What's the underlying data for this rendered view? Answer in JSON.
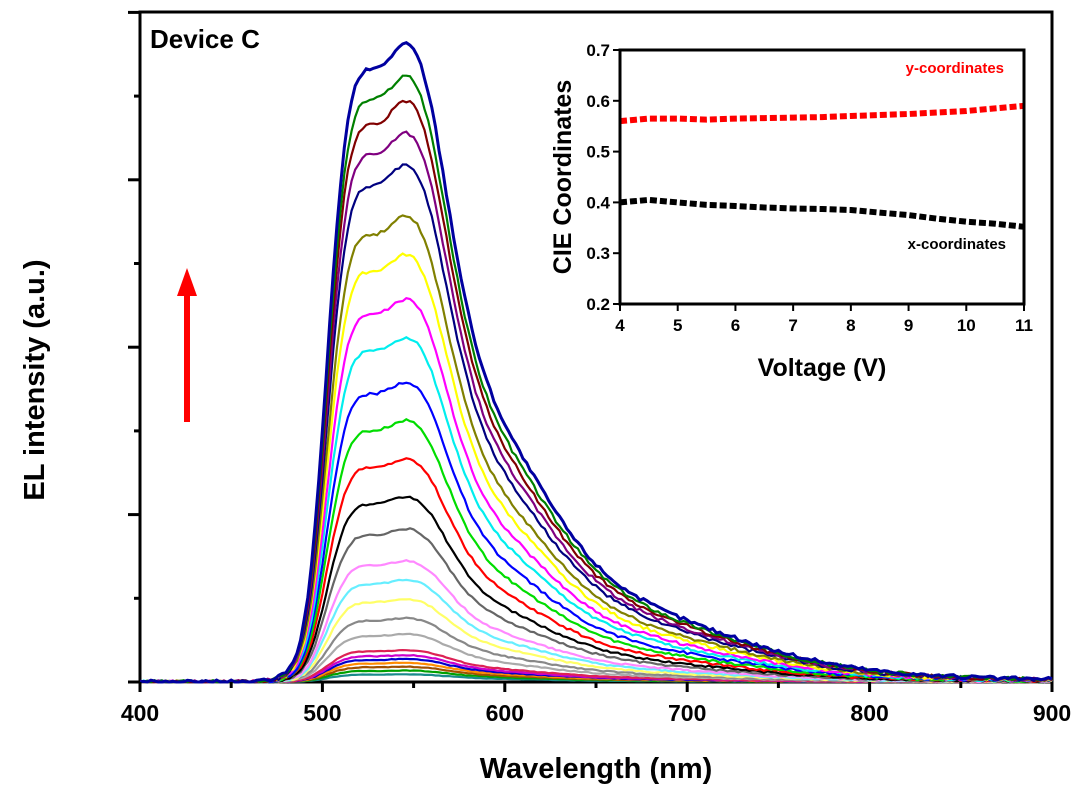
{
  "chart_data": [
    {
      "type": "line",
      "panel": "main",
      "title": "Device C",
      "xlabel": "Wavelength (nm)",
      "ylabel": "EL intensity (a.u.)",
      "xlim": [
        400,
        900
      ],
      "xticks": [
        400,
        500,
        600,
        700,
        800,
        900
      ],
      "yticks_labeled": false,
      "grid": false,
      "legend": "none",
      "annotation": "red upward arrow",
      "peak_wavelengths_nm": [
        512,
        545
      ],
      "series": [
        {
          "color": "#1a8a8a",
          "peak": 0.012
        },
        {
          "color": "#00a000",
          "peak": 0.018
        },
        {
          "color": "#a05000",
          "peak": 0.024
        },
        {
          "color": "#ff8c00",
          "peak": 0.03
        },
        {
          "color": "#0000cc",
          "peak": 0.036
        },
        {
          "color": "#cc00cc",
          "peak": 0.042
        },
        {
          "color": "#dd2255",
          "peak": 0.05
        },
        {
          "color": "#aaaaaa",
          "peak": 0.075
        },
        {
          "color": "#888888",
          "peak": 0.1
        },
        {
          "color": "#ffff66",
          "peak": 0.13
        },
        {
          "color": "#66eeff",
          "peak": 0.16
        },
        {
          "color": "#ff88ff",
          "peak": 0.19
        },
        {
          "color": "#666666",
          "peak": 0.24
        },
        {
          "color": "#000000",
          "peak": 0.29
        },
        {
          "color": "#ff0000",
          "peak": 0.35
        },
        {
          "color": "#00dd00",
          "peak": 0.41
        },
        {
          "color": "#0000ff",
          "peak": 0.47
        },
        {
          "color": "#00eeee",
          "peak": 0.54
        },
        {
          "color": "#ff00ff",
          "peak": 0.6
        },
        {
          "color": "#ffff00",
          "peak": 0.67
        },
        {
          "color": "#808000",
          "peak": 0.73
        },
        {
          "color": "#000080",
          "peak": 0.81
        },
        {
          "color": "#800080",
          "peak": 0.86
        },
        {
          "color": "#800000",
          "peak": 0.91
        },
        {
          "color": "#008000",
          "peak": 0.95
        },
        {
          "color": "#0000a0",
          "peak": 1.0
        }
      ]
    },
    {
      "type": "line",
      "panel": "inset",
      "xlabel": "Voltage (V)",
      "ylabel": "CIE Coordinates",
      "xlim": [
        4,
        11
      ],
      "ylim": [
        0.2,
        0.7
      ],
      "xticks": [
        "4",
        "5",
        "6",
        "7",
        "8",
        "9",
        "10",
        "11"
      ],
      "yticks": [
        "0.2",
        "0.3",
        "0.4",
        "0.5",
        "0.6",
        "0.7"
      ],
      "series": [
        {
          "name": "y-coordinates",
          "color": "#ff0000",
          "x": [
            4.0,
            4.5,
            5.0,
            5.5,
            6.0,
            6.5,
            7.0,
            7.5,
            8.0,
            8.5,
            9.0,
            9.5,
            10.0,
            10.5,
            11.0
          ],
          "values": [
            0.56,
            0.565,
            0.565,
            0.563,
            0.565,
            0.566,
            0.567,
            0.568,
            0.57,
            0.572,
            0.574,
            0.577,
            0.58,
            0.585,
            0.59
          ]
        },
        {
          "name": "x-coordinates",
          "color": "#000000",
          "x": [
            4.0,
            4.5,
            5.0,
            5.5,
            6.0,
            6.5,
            7.0,
            7.5,
            8.0,
            8.5,
            9.0,
            9.5,
            10.0,
            10.5,
            11.0
          ],
          "values": [
            0.4,
            0.405,
            0.4,
            0.395,
            0.393,
            0.39,
            0.388,
            0.387,
            0.385,
            0.38,
            0.375,
            0.368,
            0.362,
            0.358,
            0.352
          ]
        }
      ]
    }
  ]
}
